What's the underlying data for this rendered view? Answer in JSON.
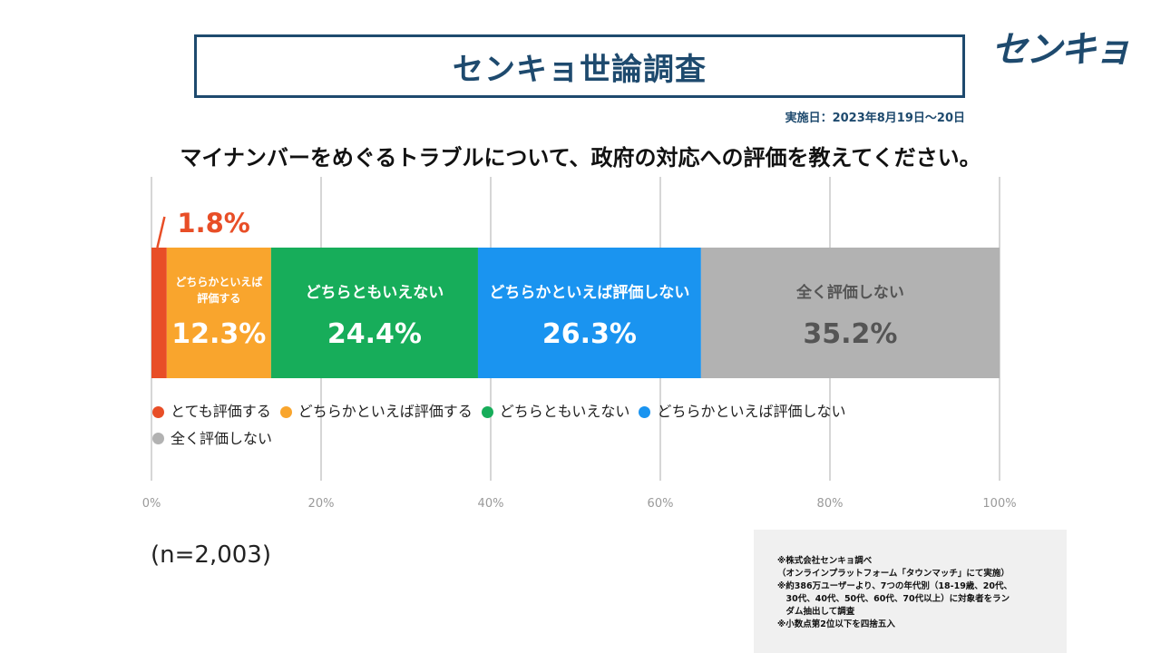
{
  "header": {
    "title": "センキョ世論調査",
    "logo": "センキョ",
    "date": "実施日：2023年8月19日〜20日"
  },
  "question": "マイナンバーをめぐるトラブルについて、政府の対応への評価を教えてください。",
  "chart_data": {
    "type": "bar",
    "orientation": "horizontal-stacked-100",
    "xlim": [
      0,
      100
    ],
    "x_ticks": [
      "0%",
      "20%",
      "40%",
      "60%",
      "80%",
      "100%"
    ],
    "grid": true,
    "series": [
      {
        "name": "とても評価する",
        "value": 1.8,
        "label": "1.8%",
        "bar_label": "",
        "color": "#e84e27",
        "text_color": "#e84e27"
      },
      {
        "name": "どちらかといえば評価する",
        "value": 12.3,
        "label": "12.3%",
        "bar_label": "どちらかといえば\n評価する",
        "color": "#f9a52d",
        "text_color": "#ffffff"
      },
      {
        "name": "どちらともいえない",
        "value": 24.4,
        "label": "24.4%",
        "bar_label": "どちらともいえない",
        "color": "#17ad5a",
        "text_color": "#ffffff"
      },
      {
        "name": "どちらかといえば評価しない",
        "value": 26.3,
        "label": "26.3%",
        "bar_label": "どちらかといえば評価しない",
        "color": "#1a94f0",
        "text_color": "#ffffff"
      },
      {
        "name": "全く評価しない",
        "value": 35.2,
        "label": "35.2%",
        "bar_label": "全く評価しない",
        "color": "#b2b2b2",
        "text_color": "#555555"
      }
    ],
    "legend_position": "bottom-left"
  },
  "sample": "(n=2,003)",
  "notes": [
    "※株式会社センキョ調べ",
    "（オンラインプラットフォーム「タウンマッチ」にて実施）",
    "※約386万ユーザーより、7つの年代別（18-19歳、20代、",
    "　30代、40代、50代、60代、70代以上）に対象者をラン",
    "　ダム抽出して調査",
    "※小数点第2位以下を四捨五入"
  ]
}
